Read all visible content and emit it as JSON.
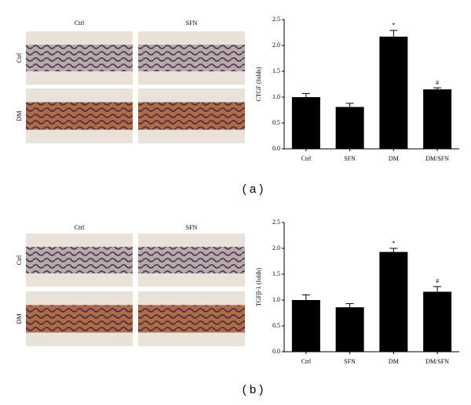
{
  "micrographs": [
    {
      "columns": [
        "Ctrl",
        "SFN"
      ],
      "rows": [
        "Ctrl",
        "DM"
      ]
    },
    {
      "columns": [
        "Ctrl",
        "SFN"
      ],
      "rows": [
        "Ctrl",
        "DM"
      ]
    }
  ],
  "panel_labels": [
    "( a )",
    "( b )"
  ],
  "chart_data": [
    {
      "type": "bar",
      "ylabel": "CTGF (folds)",
      "categories": [
        "Ctrl",
        "SFN",
        "DM",
        "DM/SFN"
      ],
      "values": [
        1.0,
        0.81,
        2.17,
        1.15
      ],
      "errors": [
        0.07,
        0.07,
        0.12,
        0.03
      ],
      "annotations": [
        null,
        null,
        "*",
        "#"
      ],
      "color": "#000000",
      "ylim": [
        0,
        2.5
      ],
      "yticks": [
        {
          "value": 0,
          "label": "0.0"
        },
        {
          "value": 0.5,
          "label": "0.5"
        },
        {
          "value": 1,
          "label": "1.0"
        },
        {
          "value": 1.5,
          "label": "1.5"
        },
        {
          "value": 2,
          "label": "2.0"
        },
        {
          "value": 2.5,
          "label": "2.5"
        }
      ]
    },
    {
      "type": "bar",
      "ylabel": "TGFβ-1 (folds)",
      "categories": [
        "Ctrl",
        "SFN",
        "DM",
        "DM/SFN"
      ],
      "values": [
        1.0,
        0.86,
        1.93,
        1.16
      ],
      "errors": [
        0.1,
        0.07,
        0.07,
        0.1
      ],
      "annotations": [
        null,
        null,
        "*",
        "#"
      ],
      "color": "#000000",
      "ylim": [
        0,
        2.5
      ],
      "yticks": [
        {
          "value": 0,
          "label": "0.0"
        },
        {
          "value": 0.5,
          "label": "0.5"
        },
        {
          "value": 1,
          "label": "1.0"
        },
        {
          "value": 1.5,
          "label": "1.5"
        },
        {
          "value": 2,
          "label": "2.0"
        },
        {
          "value": 2.5,
          "label": "2.5"
        }
      ]
    }
  ]
}
